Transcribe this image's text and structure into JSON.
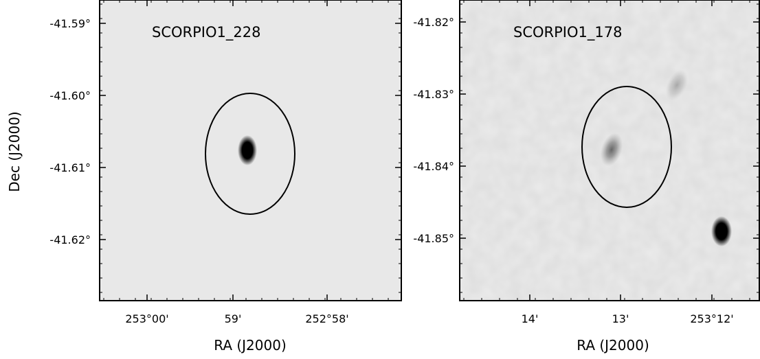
{
  "figure": {
    "y_axis_label": "Dec (J2000)"
  },
  "chart_data": [
    {
      "type": "image",
      "source_name": "SCORPIO1_228",
      "colormap": "grayscale",
      "background": "#e8e8e8",
      "xlabel": "RA (J2000)",
      "ylabel": "Dec (J2000)",
      "x_ticks": [
        "253°00'",
        "59'",
        "252°58'"
      ],
      "y_ticks": [
        "-41.59°",
        "-41.60°",
        "-41.61°",
        "-41.62°"
      ],
      "sources": [
        {
          "kind": "point-source",
          "ra_label": "59'",
          "dec": -41.608,
          "intensity": "strong"
        }
      ],
      "aperture_ellipse": {
        "center_dec": -41.608
      }
    },
    {
      "type": "image",
      "source_name": "SCORPIO1_178",
      "colormap": "grayscale",
      "background": "#ebebeb",
      "xlabel": "RA (J2000)",
      "ylabel": "",
      "x_ticks": [
        "14'",
        "13'",
        "253°12'"
      ],
      "y_ticks": [
        "-41.82°",
        "-41.83°",
        "-41.84°",
        "-41.85°"
      ],
      "sources": [
        {
          "kind": "faint-diffuse",
          "dec": -41.838,
          "intensity": "faint"
        },
        {
          "kind": "faint-diffuse",
          "dec": -41.829,
          "intensity": "very-faint"
        },
        {
          "kind": "point-source",
          "dec": -41.849,
          "intensity": "strong"
        }
      ],
      "aperture_ellipse": {
        "center_dec": -41.837
      }
    }
  ]
}
